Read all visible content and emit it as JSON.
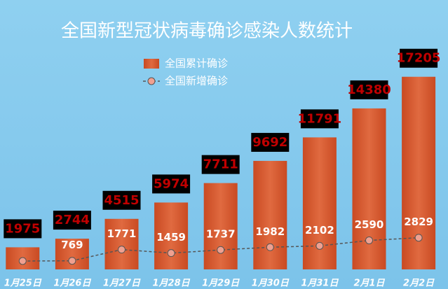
{
  "chart_data": {
    "type": "bar",
    "title": "全国新型冠状病毒确诊感染人数统计",
    "categories": [
      "1月25日",
      "1月26日",
      "1月27日",
      "1月28日",
      "1月29日",
      "1月30日",
      "1月31日",
      "2月1日",
      "2月2日"
    ],
    "ylim": [
      0,
      20000
    ],
    "legend": "top",
    "series": [
      {
        "name": "全国累计确诊",
        "type": "bar",
        "color": "#d65a30",
        "values": [
          1975,
          2744,
          4515,
          5974,
          7711,
          9692,
          11791,
          14380,
          17205
        ]
      },
      {
        "name": "全国新增确诊",
        "type": "line",
        "color": "#f0a090",
        "values": [
          750,
          769,
          1771,
          1459,
          1737,
          1982,
          2102,
          2590,
          2829
        ],
        "value_labels": [
          null,
          "769",
          "1771",
          "1459",
          "1737",
          "1982",
          "2102",
          "2590",
          "2829"
        ]
      }
    ]
  }
}
